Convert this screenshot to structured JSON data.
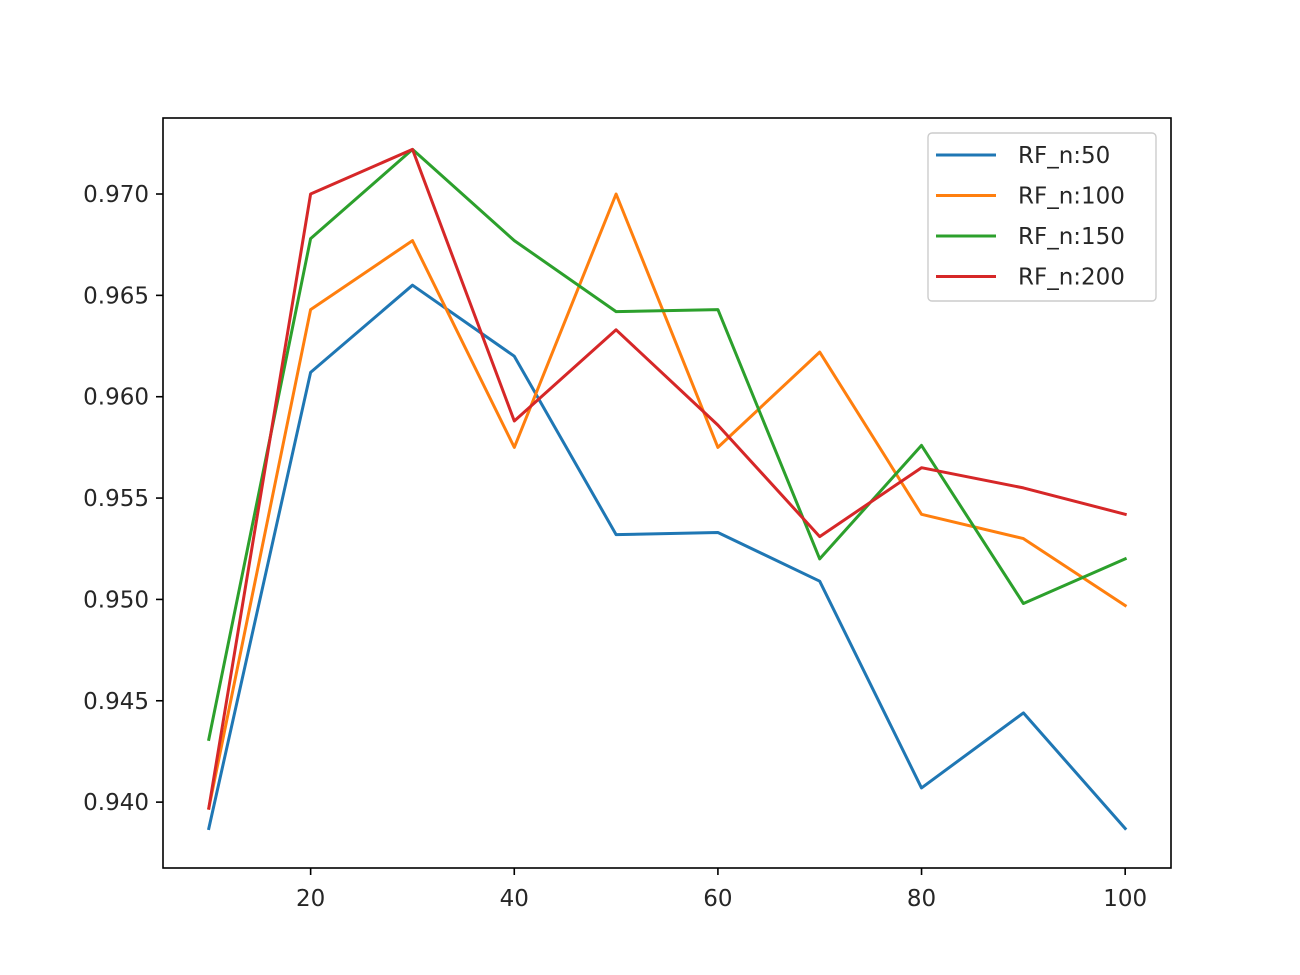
{
  "chart_data": {
    "type": "line",
    "x": [
      10,
      20,
      30,
      40,
      50,
      60,
      70,
      80,
      90,
      100
    ],
    "xlim": [
      5.5,
      104.5
    ],
    "ylim": [
      0.93675,
      0.97375
    ],
    "xticks": [
      20,
      40,
      60,
      80,
      100
    ],
    "yticks": [
      0.94,
      0.945,
      0.95,
      0.955,
      0.96,
      0.965,
      0.97
    ],
    "xtick_labels": [
      "20",
      "40",
      "60",
      "80",
      "100"
    ],
    "ytick_labels": [
      "0.940",
      "0.945",
      "0.950",
      "0.955",
      "0.960",
      "0.965",
      "0.970"
    ],
    "grid": false,
    "legend_position": "top-right",
    "series": [
      {
        "name": "RF_n:50",
        "color": "#1f77b4",
        "values": [
          0.9387,
          0.9612,
          0.9655,
          0.962,
          0.9532,
          0.9533,
          0.9509,
          0.9407,
          0.9444,
          0.9387
        ]
      },
      {
        "name": "RF_n:100",
        "color": "#ff7f0e",
        "values": [
          0.9397,
          0.9643,
          0.9677,
          0.9575,
          0.97,
          0.9575,
          0.9622,
          0.9542,
          0.953,
          0.9497
        ]
      },
      {
        "name": "RF_n:150",
        "color": "#2ca02c",
        "values": [
          0.9431,
          0.9678,
          0.9722,
          0.9677,
          0.9642,
          0.9643,
          0.952,
          0.9576,
          0.9498,
          0.952
        ]
      },
      {
        "name": "RF_n:200",
        "color": "#d62728",
        "values": [
          0.9397,
          0.97,
          0.9722,
          0.9588,
          0.9633,
          0.9586,
          0.9531,
          0.9565,
          0.9555,
          0.9542
        ]
      }
    ]
  }
}
